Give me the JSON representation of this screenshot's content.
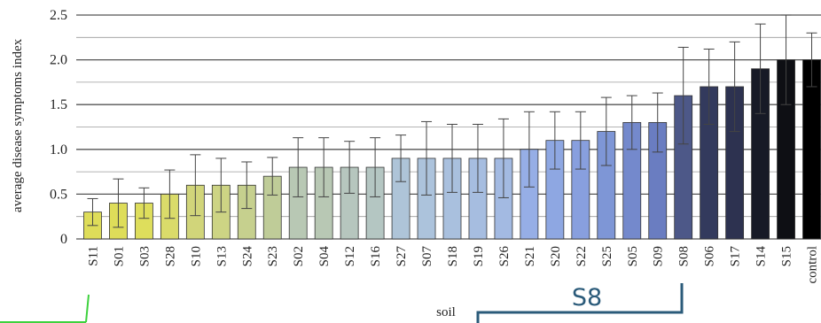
{
  "chart_data": {
    "type": "bar",
    "title": "",
    "xlabel": "soil",
    "ylabel": "average disease symptoms index",
    "ylim": [
      0,
      2.5
    ],
    "yticks": [
      "0",
      "0.5",
      "1.0",
      "1.5",
      "2.0",
      "2.5"
    ],
    "grid": true,
    "categories": [
      "S11",
      "S01",
      "S03",
      "S28",
      "S10",
      "S13",
      "S24",
      "S23",
      "S02",
      "S04",
      "S12",
      "S16",
      "S27",
      "S07",
      "S18",
      "S19",
      "S26",
      "S21",
      "S20",
      "S22",
      "S25",
      "S05",
      "S09",
      "S08",
      "S06",
      "S17",
      "S14",
      "S15",
      "control"
    ],
    "values": [
      0.3,
      0.4,
      0.4,
      0.5,
      0.6,
      0.6,
      0.6,
      0.7,
      0.8,
      0.8,
      0.8,
      0.8,
      0.9,
      0.9,
      0.9,
      0.9,
      0.9,
      1.0,
      1.1,
      1.1,
      1.2,
      1.3,
      1.3,
      1.6,
      1.7,
      1.7,
      1.9,
      2.0,
      2.0
    ],
    "errors": [
      0.15,
      0.27,
      0.17,
      0.27,
      0.34,
      0.3,
      0.26,
      0.21,
      0.33,
      0.33,
      0.29,
      0.33,
      0.26,
      0.41,
      0.38,
      0.38,
      0.44,
      0.42,
      0.32,
      0.32,
      0.38,
      0.3,
      0.33,
      0.54,
      0.42,
      0.5,
      0.5,
      0.5,
      0.3
    ],
    "colors": [
      "#dedd59",
      "#dedd59",
      "#dede5c",
      "#dadb6a",
      "#d1d57a",
      "#cdd484",
      "#c6d08e",
      "#bfcc98",
      "#b8c8b4",
      "#b8c8b4",
      "#b6c6be",
      "#b4c6c2",
      "#aec4d8",
      "#acc3dc",
      "#a9c0de",
      "#a6bde0",
      "#a3bae2",
      "#96aee6",
      "#8ea7e2",
      "#889fde",
      "#7e96d6",
      "#7489cc",
      "#6a7dc1",
      "#4d5888",
      "#333a5d",
      "#2d3250",
      "#171a26",
      "#0e0f14",
      "#000000"
    ]
  },
  "annotation": {
    "callout_label": "S8",
    "accent_color": "#2b5b7a",
    "marker_color": "#3dd13d"
  }
}
